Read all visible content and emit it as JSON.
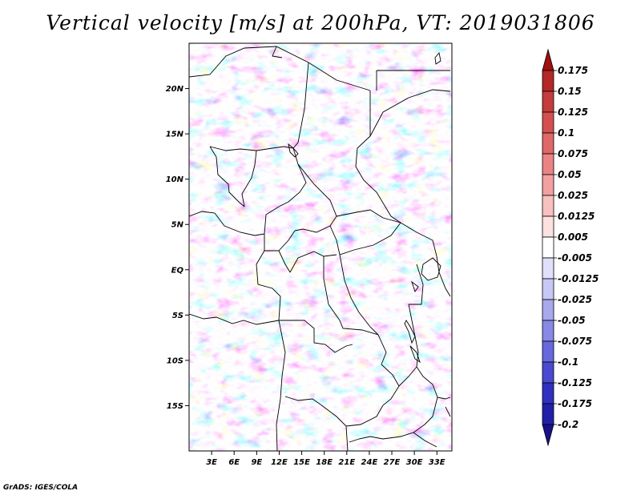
{
  "title": "Vertical velocity [m/s] at 200hPa, VT: 2019031806",
  "footer": "GrADS: IGES/COLA",
  "map": {
    "lon_range": [
      0,
      35
    ],
    "lat_range": [
      -20,
      25
    ],
    "lat_ticks": [
      "20N",
      "15N",
      "10N",
      "5N",
      "EQ",
      "5S",
      "10S",
      "15S"
    ],
    "lat_values": [
      20,
      15,
      10,
      5,
      0,
      -5,
      -10,
      -15
    ],
    "lon_ticks": [
      "3E",
      "6E",
      "9E",
      "12E",
      "15E",
      "18E",
      "21E",
      "24E",
      "27E",
      "30E",
      "33E"
    ],
    "lon_values": [
      3,
      6,
      9,
      12,
      15,
      18,
      21,
      24,
      27,
      30,
      33
    ]
  },
  "colorbar": {
    "labels": [
      "0.175",
      "0.15",
      "0.125",
      "0.1",
      "0.075",
      "0.05",
      "0.025",
      "0.0125",
      "0.005",
      "-0.005",
      "-0.0125",
      "-0.025",
      "-0.05",
      "-0.075",
      "-0.1",
      "-0.125",
      "-0.175",
      "-0.2"
    ],
    "colors": [
      "#a01010",
      "#b42828",
      "#c43c3c",
      "#d45050",
      "#e06868",
      "#ea8484",
      "#f2a0a0",
      "#f8c0c0",
      "#fde0e0",
      "#ffffff",
      "#e0e0fa",
      "#c8c8f5",
      "#a8a8ee",
      "#8888e6",
      "#6868de",
      "#4a4ad0",
      "#3030c0",
      "#2020a8",
      "#1a1088"
    ]
  }
}
